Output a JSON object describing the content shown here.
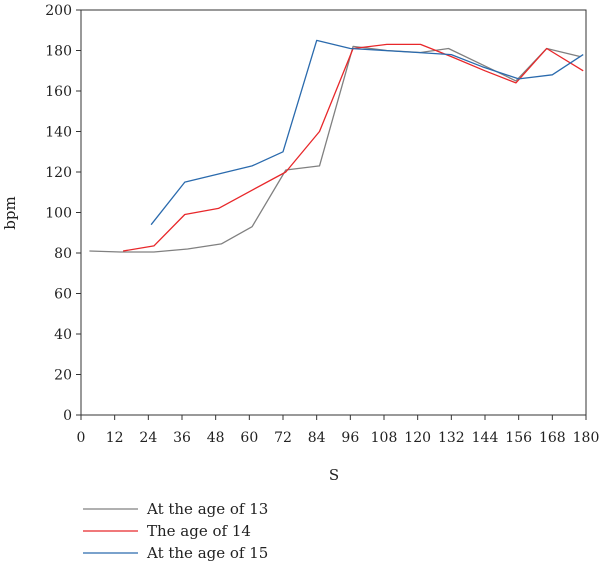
{
  "chart_data": {
    "type": "line",
    "title": "",
    "xlabel": "S",
    "ylabel": "bpm",
    "xlim": [
      0,
      180
    ],
    "ylim": [
      0,
      200
    ],
    "xticks": [
      0,
      12,
      24,
      36,
      48,
      60,
      72,
      84,
      96,
      108,
      120,
      132,
      144,
      156,
      168,
      180
    ],
    "yticks": [
      0,
      20,
      40,
      60,
      80,
      100,
      120,
      140,
      160,
      180,
      200
    ],
    "grid": false,
    "legend_position": "bottom-left",
    "series": [
      {
        "name": "At the age of 13",
        "color": "#808080",
        "points": [
          [
            3,
            81
          ],
          [
            14,
            80.5
          ],
          [
            26,
            80.5
          ],
          [
            38,
            82
          ],
          [
            50,
            84.5
          ],
          [
            61,
            93
          ],
          [
            73,
            121
          ],
          [
            85,
            123
          ],
          [
            97,
            182
          ],
          [
            109,
            180
          ],
          [
            121,
            179
          ],
          [
            131,
            181
          ],
          [
            143,
            173
          ],
          [
            155,
            165
          ],
          [
            166,
            181
          ],
          [
            178,
            177
          ]
        ]
      },
      {
        "name": "The age of 14",
        "color": "#e8272a",
        "points": [
          [
            15,
            81
          ],
          [
            26,
            83.5
          ],
          [
            37,
            99
          ],
          [
            49,
            102
          ],
          [
            61,
            111
          ],
          [
            73,
            120
          ],
          [
            85,
            140
          ],
          [
            97,
            181
          ],
          [
            109,
            183
          ],
          [
            121,
            183
          ],
          [
            132,
            177
          ],
          [
            144,
            170
          ],
          [
            155,
            164
          ],
          [
            166,
            181
          ],
          [
            179,
            170
          ]
        ]
      },
      {
        "name": "At the age of 15",
        "color": "#2a6aad",
        "points": [
          [
            25,
            94
          ],
          [
            37,
            115
          ],
          [
            49,
            119
          ],
          [
            61,
            123
          ],
          [
            72,
            130
          ],
          [
            84,
            185
          ],
          [
            96,
            181
          ],
          [
            108,
            180
          ],
          [
            120,
            179
          ],
          [
            132,
            178
          ],
          [
            143,
            172
          ],
          [
            156,
            166
          ],
          [
            168,
            168
          ],
          [
            179,
            178
          ]
        ]
      }
    ]
  }
}
